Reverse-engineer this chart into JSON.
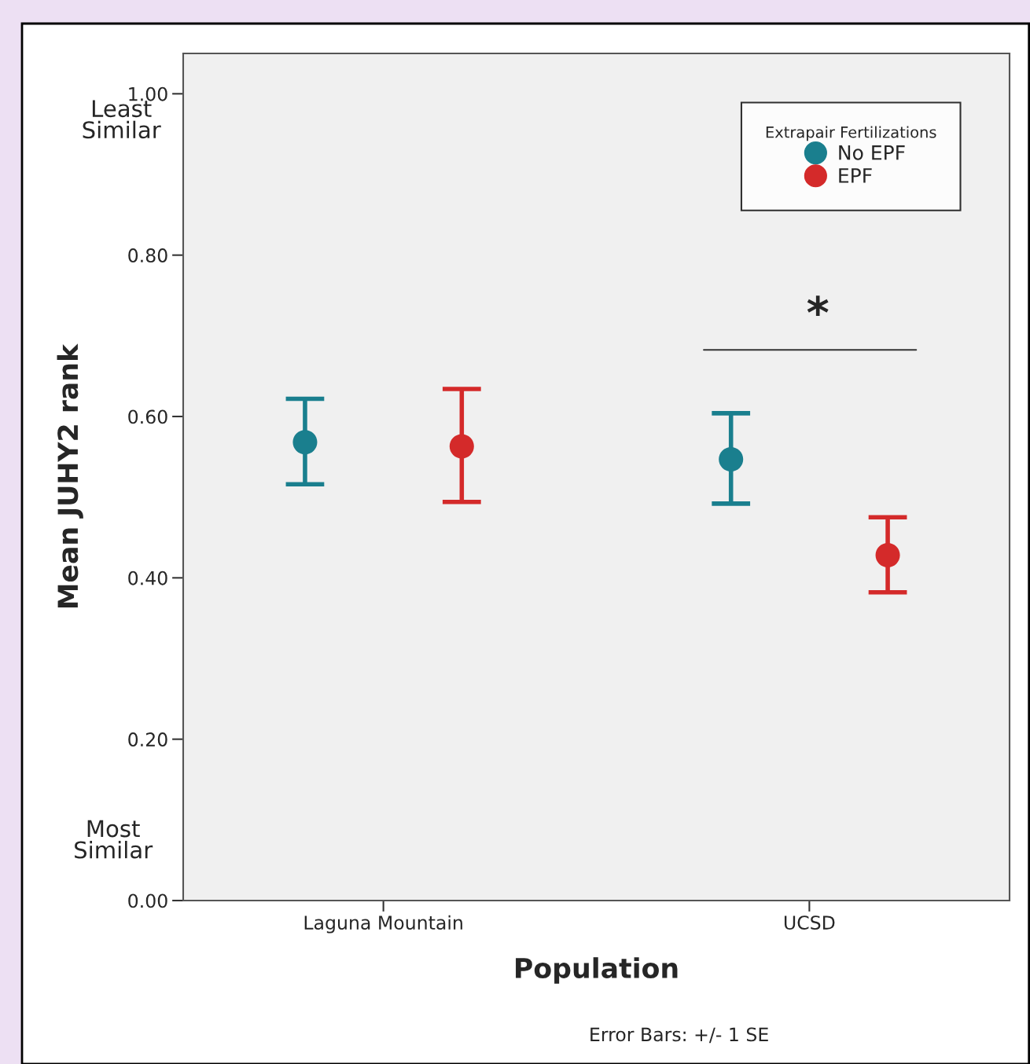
{
  "chart_data": {
    "type": "scatter",
    "xlabel": "Population",
    "ylabel": "Mean JUHY2 rank",
    "legend_title": "Extrapair Fertilizations",
    "categories": [
      "Laguna Mountain",
      "UCSD"
    ],
    "series": [
      {
        "name": "No EPF",
        "color": "#1a7f8e",
        "values": [
          0.568,
          0.547
        ],
        "errors": [
          [
            0.516,
            0.622
          ],
          [
            0.492,
            0.604
          ]
        ]
      },
      {
        "name": "EPF",
        "color": "#d42a2a",
        "values": [
          0.563,
          0.428
        ],
        "errors": [
          [
            0.494,
            0.634
          ],
          [
            0.382,
            0.475
          ]
        ]
      }
    ],
    "ylim": [
      0,
      1.05
    ],
    "yticks": [
      {
        "value": 0,
        "label": "0.00"
      },
      {
        "value": 0.2,
        "label": "0.20"
      },
      {
        "value": 0.4,
        "label": "0.40"
      },
      {
        "value": 0.6,
        "label": "0.60"
      },
      {
        "value": 0.8,
        "label": "0.80"
      },
      {
        "value": 1.0,
        "label": "1.00"
      }
    ],
    "annotations": [
      "Least Similar",
      "Most Similar",
      "*",
      "Error Bars: +/- 1 SE"
    ],
    "marker": "circle",
    "grid": false,
    "legend": "top right"
  }
}
